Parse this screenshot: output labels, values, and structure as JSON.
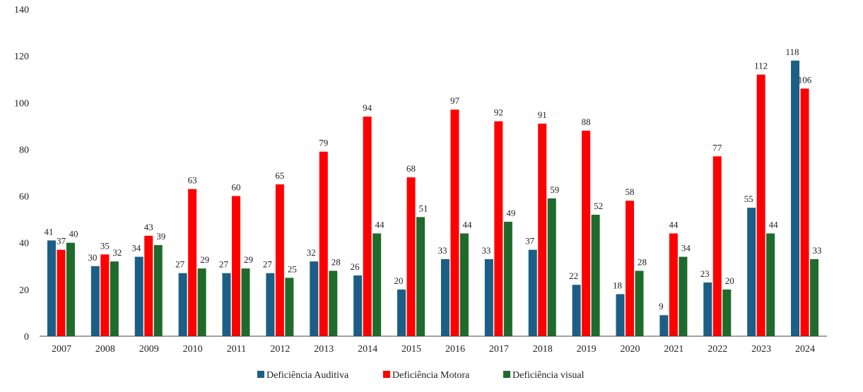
{
  "chart_data": {
    "type": "bar",
    "title": "",
    "xlabel": "",
    "ylabel": "",
    "ylim": [
      0,
      140
    ],
    "yticks": [
      0,
      20,
      40,
      60,
      80,
      100,
      120,
      140
    ],
    "grid": false,
    "legend_position": "bottom-center",
    "categories": [
      "2007",
      "2008",
      "2009",
      "2010",
      "2011",
      "2012",
      "2013",
      "2014",
      "2015",
      "2016",
      "2017",
      "2018",
      "2019",
      "2020",
      "2021",
      "2022",
      "2023",
      "2024"
    ],
    "series": [
      {
        "name": "Deficiência Auditiva",
        "color": "#1b5e86",
        "values": [
          41,
          30,
          34,
          27,
          27,
          27,
          32,
          26,
          20,
          33,
          33,
          37,
          22,
          18,
          9,
          23,
          55,
          118
        ]
      },
      {
        "name": "Deficiência Motora",
        "color": "#ff0000",
        "values": [
          37,
          35,
          43,
          63,
          60,
          65,
          79,
          94,
          68,
          97,
          92,
          91,
          88,
          58,
          44,
          77,
          112,
          106
        ]
      },
      {
        "name": "Deficiência visual",
        "color": "#1e6b2c",
        "values": [
          40,
          32,
          39,
          29,
          29,
          25,
          28,
          44,
          51,
          44,
          49,
          59,
          52,
          28,
          34,
          20,
          44,
          33
        ]
      }
    ]
  }
}
